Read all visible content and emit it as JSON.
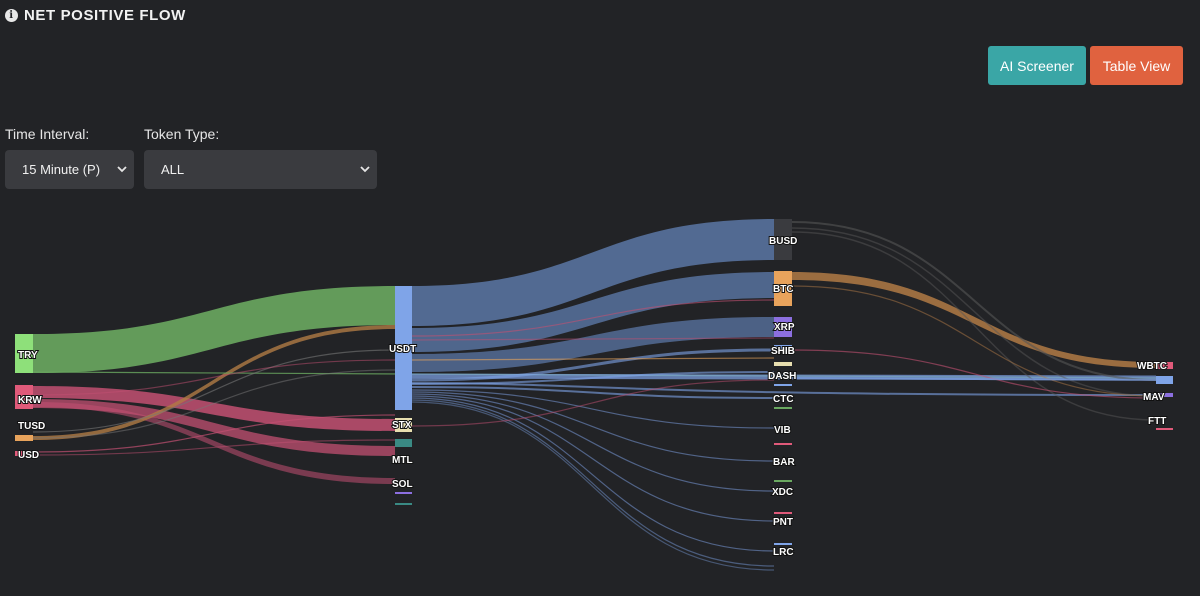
{
  "header": {
    "title": "NET POSITIVE FLOW",
    "info_icon": "info-icon"
  },
  "actions": {
    "ai_screener": "AI Screener",
    "table_view": "Table View"
  },
  "filters": {
    "time_interval": {
      "label": "Time Interval:",
      "value": "15 Minute (P)"
    },
    "token_type": {
      "label": "Token Type:",
      "value": "ALL"
    }
  },
  "colors": {
    "background": "#222326",
    "ai_screener": "#3aa6a6",
    "table_view": "#e0623f",
    "TRY": "#8ee07a",
    "KRW": "#e05a7a",
    "TUSD": "#e8a35c",
    "USD": "#e05a7a",
    "USDT": "#7fa4e8",
    "BUSD": "#3a3b3f",
    "BTC": "#e8a35c",
    "XRP": "#8c6fe0"
  },
  "sankey": {
    "columns": [
      [
        "TRY",
        "KRW",
        "TUSD",
        "USD"
      ],
      [
        "USDT",
        "STX",
        "MTL",
        "SOL"
      ],
      [
        "BUSD",
        "BTC",
        "XRP",
        "SHIB",
        "DASH",
        "CTC",
        "VIB",
        "BAR",
        "XDC",
        "PNT",
        "LRC"
      ],
      [
        "WBTC",
        "MAV",
        "FTT"
      ]
    ]
  }
}
